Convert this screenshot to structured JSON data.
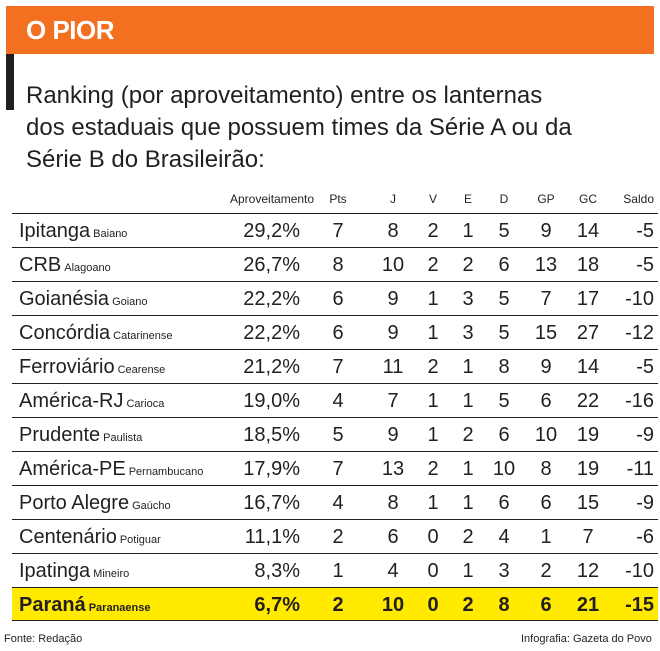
{
  "banner": {
    "title": "O PIOR",
    "color": "#f37021"
  },
  "subtitle_lines": [
    "Ranking (por aproveitamento) entre os lanternas",
    "dos estaduais que possuem times da Série A ou da",
    "Série B do Brasileirão:"
  ],
  "table": {
    "headers": [
      "Aproveitamento",
      "Pts",
      "J",
      "V",
      "E",
      "D",
      "GP",
      "GC",
      "Saldo"
    ],
    "rows": [
      {
        "team": "Ipitanga",
        "state": "Baiano",
        "ap": "29,2%",
        "pts": "7",
        "j": "8",
        "v": "2",
        "e": "1",
        "d": "5",
        "gp": "9",
        "gc": "14",
        "saldo": "-5"
      },
      {
        "team": "CRB",
        "state": "Alagoano",
        "ap": "26,7%",
        "pts": "8",
        "j": "10",
        "v": "2",
        "e": "2",
        "d": "6",
        "gp": "13",
        "gc": "18",
        "saldo": "-5"
      },
      {
        "team": "Goianésia",
        "state": "Goiano",
        "ap": "22,2%",
        "pts": "6",
        "j": "9",
        "v": "1",
        "e": "3",
        "d": "5",
        "gp": "7",
        "gc": "17",
        "saldo": "-10"
      },
      {
        "team": "Concórdia",
        "state": "Catarinense",
        "ap": "22,2%",
        "pts": "6",
        "j": "9",
        "v": "1",
        "e": "3",
        "d": "5",
        "gp": "15",
        "gc": "27",
        "saldo": "-12"
      },
      {
        "team": "Ferroviário",
        "state": "Cearense",
        "ap": "21,2%",
        "pts": "7",
        "j": "11",
        "v": "2",
        "e": "1",
        "d": "8",
        "gp": "9",
        "gc": "14",
        "saldo": "-5"
      },
      {
        "team": "América-RJ",
        "state": "Carioca",
        "ap": "19,0%",
        "pts": "4",
        "j": "7",
        "v": "1",
        "e": "1",
        "d": "5",
        "gp": "6",
        "gc": "22",
        "saldo": "-16"
      },
      {
        "team": "Prudente",
        "state": "Paulista",
        "ap": "18,5%",
        "pts": "5",
        "j": "9",
        "v": "1",
        "e": "2",
        "d": "6",
        "gp": "10",
        "gc": "19",
        "saldo": "-9"
      },
      {
        "team": "América-PE",
        "state": "Pernambucano",
        "ap": "17,9%",
        "pts": "7",
        "j": "13",
        "v": "2",
        "e": "1",
        "d": "10",
        "gp": "8",
        "gc": "19",
        "saldo": "-11"
      },
      {
        "team": "Porto Alegre",
        "state": "Gaúcho",
        "ap": "16,7%",
        "pts": "4",
        "j": "8",
        "v": "1",
        "e": "1",
        "d": "6",
        "gp": "6",
        "gc": "15",
        "saldo": "-9"
      },
      {
        "team": "Centenário",
        "state": "Potiguar",
        "ap": "11,1%",
        "pts": "2",
        "j": "6",
        "v": "0",
        "e": "2",
        "d": "4",
        "gp": "1",
        "gc": "7",
        "saldo": "-6"
      },
      {
        "team": "Ipatinga",
        "state": "Mineiro",
        "ap": "8,3%",
        "pts": "1",
        "j": "4",
        "v": "0",
        "e": "1",
        "d": "3",
        "gp": "2",
        "gc": "12",
        "saldo": "-10"
      },
      {
        "team": "Paraná",
        "state": "Paranaense",
        "ap": "6,7%",
        "pts": "2",
        "j": "10",
        "v": "0",
        "e": "2",
        "d": "8",
        "gp": "6",
        "gc": "21",
        "saldo": "-15"
      }
    ],
    "highlight_color": "#ffea00"
  },
  "footer": {
    "source": "Fonte: Redação",
    "credit": "Infografia: Gazeta do Povo"
  }
}
